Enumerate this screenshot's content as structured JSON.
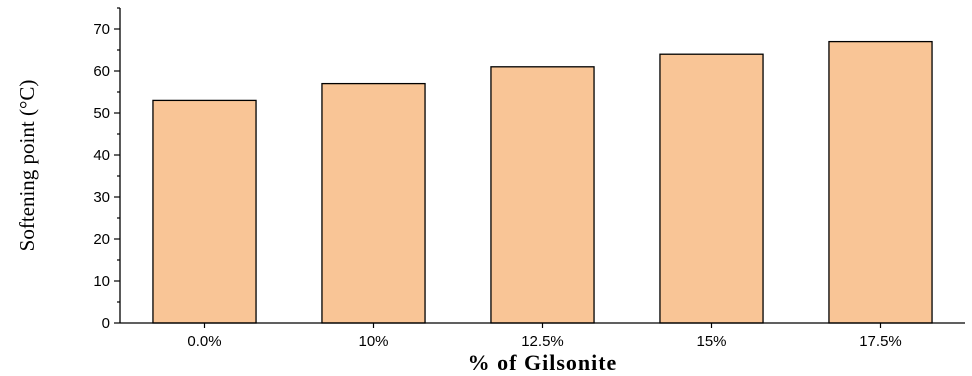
{
  "chart_data": {
    "type": "bar",
    "categories": [
      "0.0%",
      "10%",
      "12.5%",
      "15%",
      "17.5%"
    ],
    "values": [
      53,
      57,
      61,
      64,
      67
    ],
    "xlabel": "% of Gilsonite",
    "ylabel": "Softening point (°C)",
    "ylim": [
      0,
      75
    ],
    "yticks": [
      0,
      10,
      20,
      30,
      40,
      50,
      60,
      70
    ],
    "bar_color": "#F9C596",
    "bar_edge_color": "#000000",
    "grid": false
  }
}
